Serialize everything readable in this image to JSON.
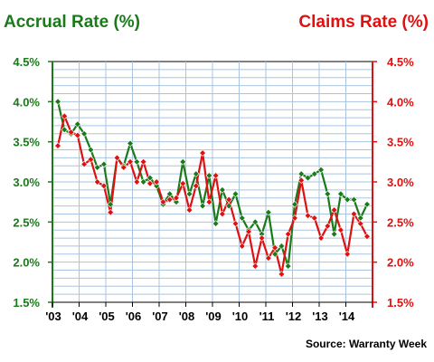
{
  "chart_data": {
    "type": "line",
    "title_left": "Accrual Rate (%)",
    "title_right": "Claims Rate (%)",
    "source": "Source: Warranty Week",
    "colors": {
      "accrual": "#1a7a1a",
      "claims": "#e01010",
      "grid": "#a8c4e0"
    },
    "left_axis": {
      "ticks": [
        "4.5%",
        "4.0%",
        "3.5%",
        "3.0%",
        "2.5%",
        "2.0%",
        "1.5%"
      ],
      "range": [
        1.5,
        4.5
      ]
    },
    "right_axis": {
      "ticks": [
        "4.5%",
        "4.0%",
        "3.5%",
        "3.0%",
        "2.5%",
        "2.0%",
        "1.5%"
      ],
      "range": [
        1.5,
        4.5
      ]
    },
    "x_ticks": [
      "'03",
      "'04",
      "'05",
      "'06",
      "'07",
      "'08",
      "'09",
      "'10",
      "'11",
      "'12",
      "'13",
      "'14"
    ],
    "x_range": [
      0,
      47
    ],
    "series": [
      {
        "name": "Accrual Rate (%)",
        "key": "accrual",
        "x": [
          0,
          1,
          2,
          3,
          4,
          5,
          6,
          7,
          8,
          9,
          10,
          11,
          12,
          13,
          14,
          15,
          16,
          17,
          18,
          19,
          20,
          21,
          22,
          23,
          24,
          25,
          26,
          27,
          28,
          29,
          30,
          31,
          32,
          33,
          34,
          35,
          36,
          37,
          38,
          39,
          40,
          41,
          42,
          43,
          44,
          45,
          46,
          47
        ],
        "values": [
          4.0,
          3.65,
          3.6,
          3.72,
          3.6,
          3.4,
          3.18,
          3.22,
          2.72,
          3.3,
          3.2,
          3.48,
          3.25,
          3.0,
          3.05,
          2.95,
          2.72,
          2.85,
          2.75,
          3.25,
          2.85,
          3.1,
          2.7,
          3.08,
          2.48,
          2.9,
          2.7,
          2.85,
          2.55,
          2.4,
          2.5,
          2.35,
          2.62,
          2.1,
          2.2,
          1.95,
          2.72,
          3.1,
          3.05,
          3.1,
          3.15,
          2.85,
          2.35,
          2.85,
          2.78,
          2.78,
          2.55,
          2.72
        ]
      },
      {
        "name": "Claims Rate (%)",
        "key": "claims",
        "x": [
          0,
          1,
          2,
          3,
          4,
          5,
          6,
          7,
          8,
          9,
          10,
          11,
          12,
          13,
          14,
          15,
          16,
          17,
          18,
          19,
          20,
          21,
          22,
          23,
          24,
          25,
          26,
          27,
          28,
          29,
          30,
          31,
          32,
          33,
          34,
          35,
          36,
          37,
          38,
          39,
          40,
          41,
          42,
          43,
          44,
          45,
          46,
          47
        ],
        "values": [
          3.45,
          3.82,
          3.62,
          3.58,
          3.22,
          3.28,
          3.0,
          2.95,
          2.62,
          3.3,
          3.18,
          3.25,
          3.0,
          3.25,
          2.98,
          3.0,
          2.75,
          2.78,
          2.8,
          2.98,
          2.65,
          2.95,
          3.36,
          2.75,
          3.08,
          2.6,
          2.78,
          2.48,
          2.2,
          2.38,
          1.95,
          2.3,
          2.05,
          2.18,
          1.85,
          2.35,
          2.55,
          3.02,
          2.58,
          2.55,
          2.3,
          2.45,
          2.65,
          2.4,
          2.1,
          2.6,
          2.48,
          2.32
        ]
      }
    ]
  }
}
